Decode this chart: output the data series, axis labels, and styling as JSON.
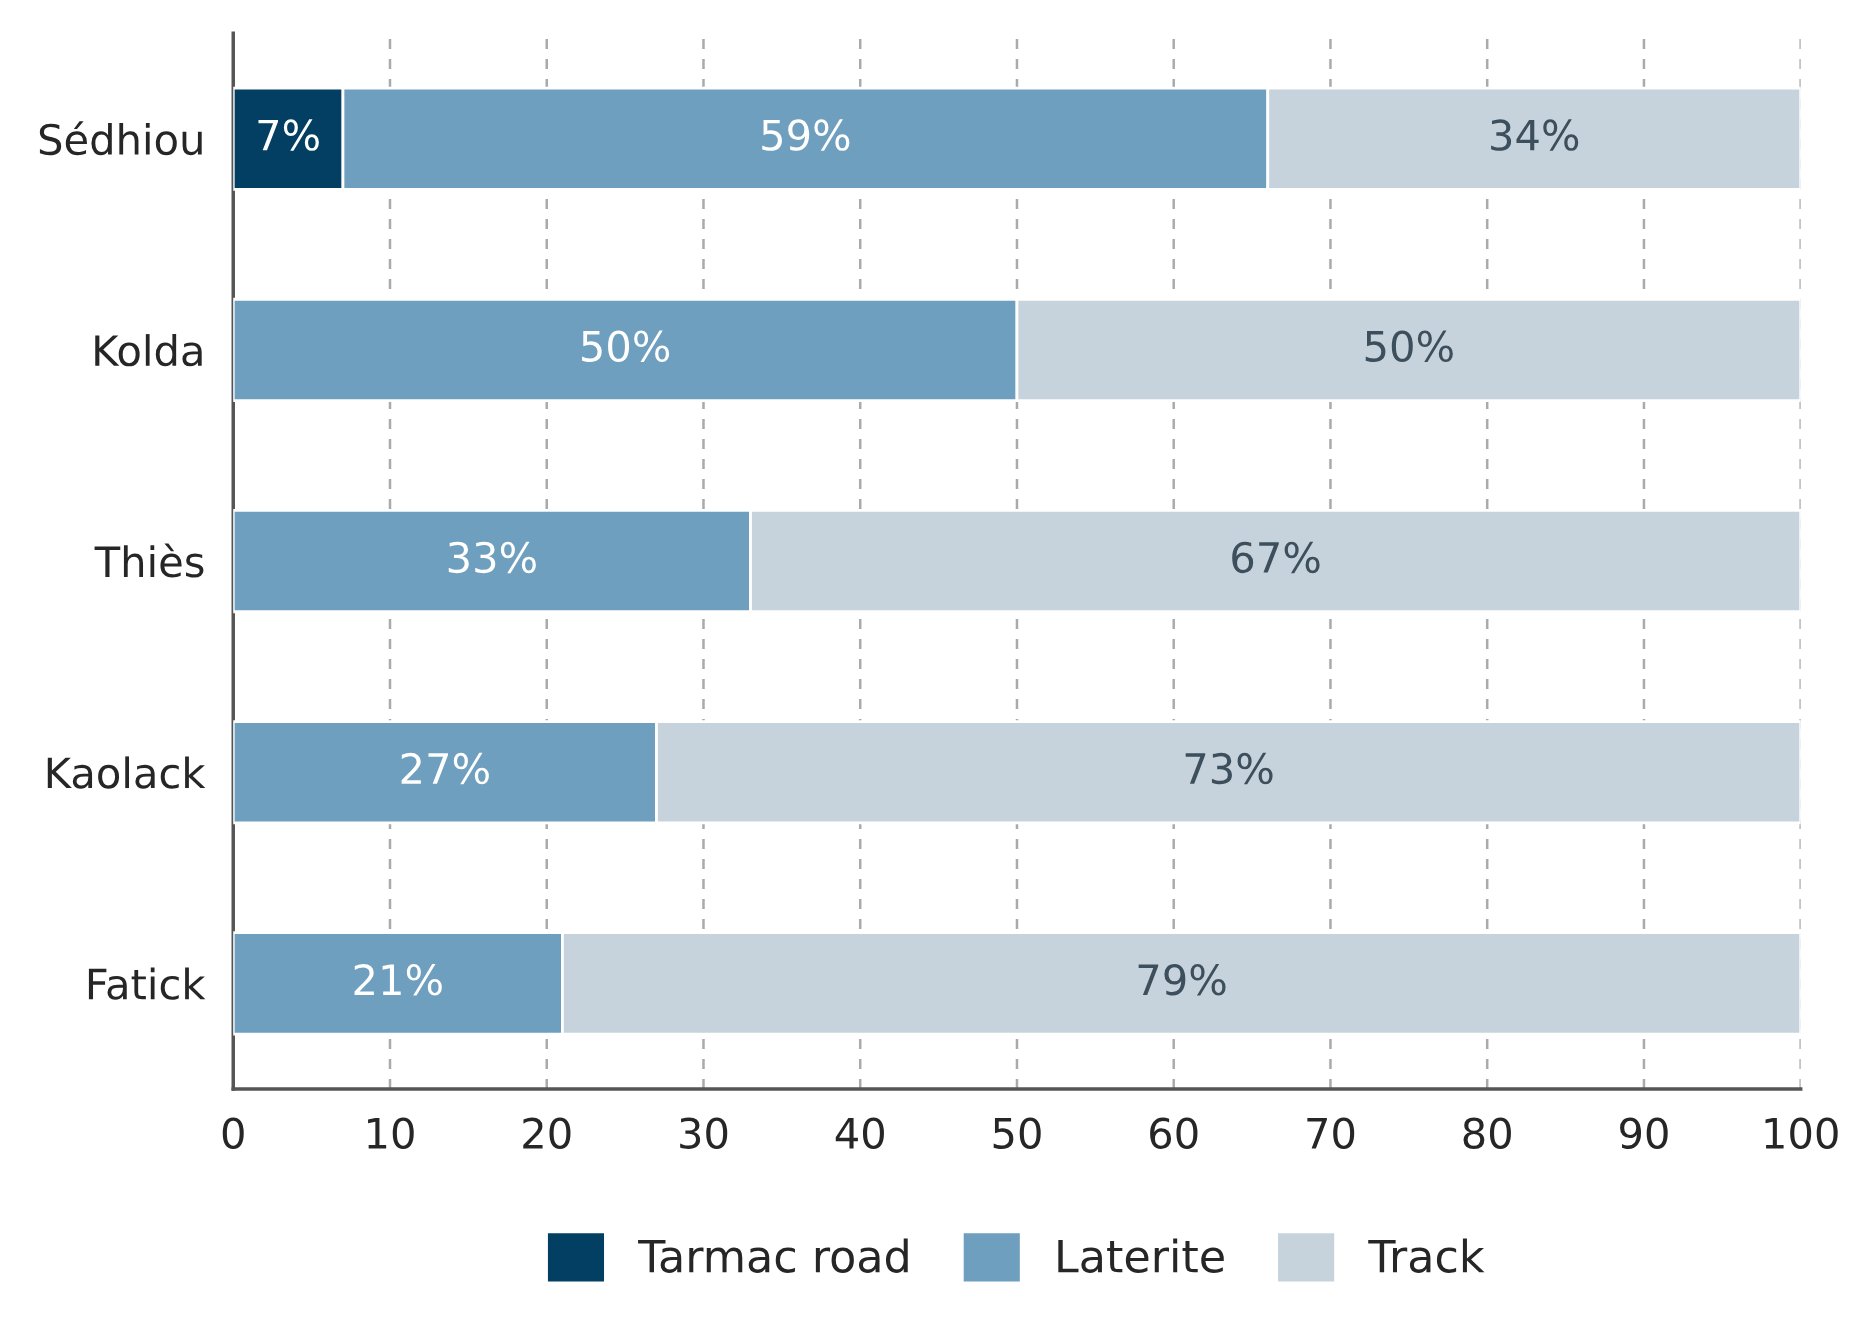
{
  "chart_data": {
    "type": "bar",
    "orientation": "horizontal",
    "stacked": true,
    "categories": [
      "Sédhiou",
      "Kolda",
      "Thiès",
      "Kaolack",
      "Fatick"
    ],
    "series": [
      {
        "name": "Tarmac road",
        "color": "#023f63",
        "values": [
          7,
          null,
          null,
          null,
          null
        ],
        "value_labels": [
          "7%",
          null,
          null,
          null,
          null
        ]
      },
      {
        "name": "Laterite",
        "color": "#6f9fbf",
        "values": [
          59,
          50,
          33,
          27,
          21
        ],
        "value_labels": [
          "59%",
          "50%",
          "33%",
          "27%",
          "21%"
        ]
      },
      {
        "name": "Track",
        "color": "#c6d3dc",
        "values": [
          34,
          50,
          67,
          73,
          79
        ],
        "value_labels": [
          "34%",
          "50%",
          "67%",
          "73%",
          "79%"
        ]
      }
    ],
    "xlim": [
      0,
      100
    ],
    "xticks": [
      0,
      10,
      20,
      30,
      40,
      50,
      60,
      70,
      80,
      90,
      100
    ],
    "grid": "x",
    "legend": "bottom"
  }
}
